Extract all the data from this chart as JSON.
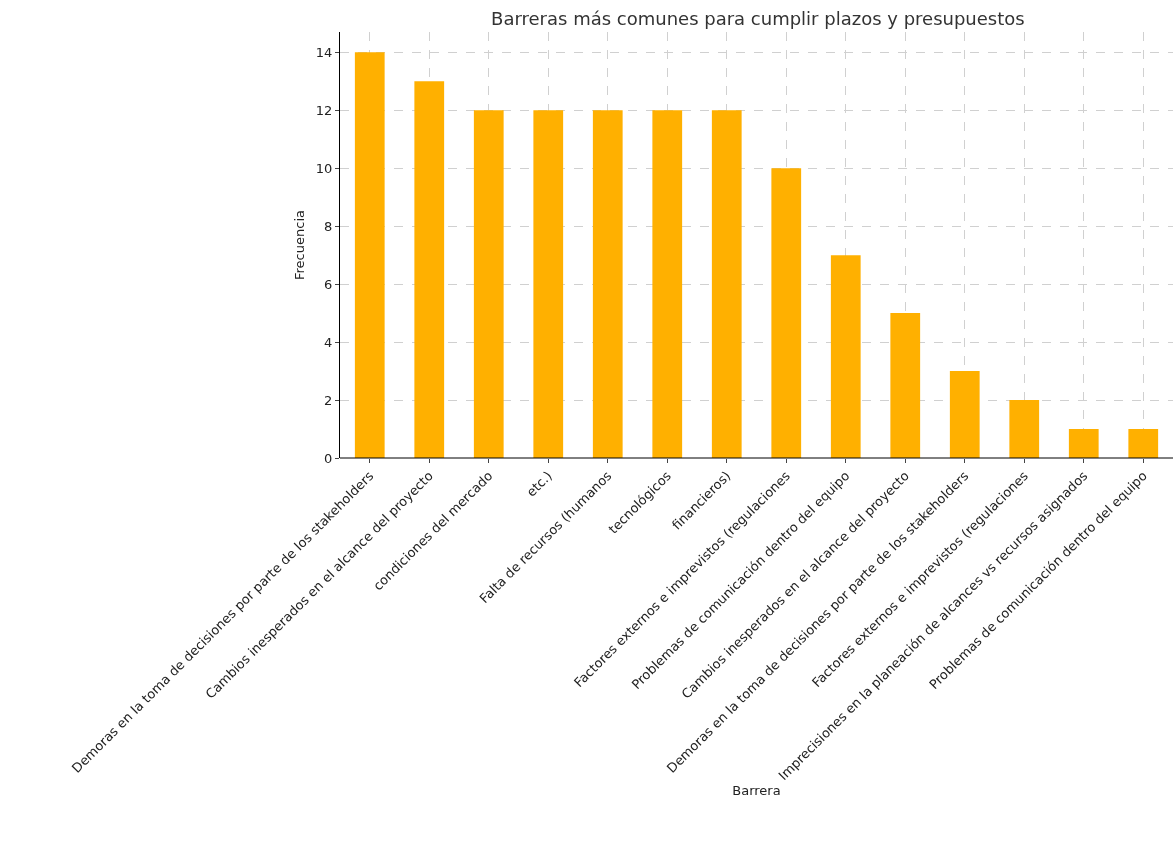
{
  "chart_data": {
    "type": "bar",
    "title": "Barreras más comunes para cumplir plazos y presupuestos",
    "xlabel": "Barrera",
    "ylabel": "Frecuencia",
    "categories": [
      "Demoras en la toma de decisiones por parte de los stakeholders",
      "Cambios inesperados en el alcance del proyecto",
      "condiciones del mercado",
      "etc.)",
      "Falta de recursos (humanos",
      "tecnológicos",
      "financieros)",
      "Factores externos e imprevistos (regulaciones",
      "Problemas de comunicación dentro del equipo",
      "Cambios inesperados en el alcance del proyecto",
      "Demoras en la toma de decisiones por parte de los stakeholders",
      "Factores externos e imprevistos (regulaciones",
      "Imprecisiones en la planeación de alcances vs recursos asignados",
      "Problemas de comunicación dentro del equipo"
    ],
    "values": [
      14,
      13,
      12,
      12,
      12,
      12,
      12,
      10,
      7,
      5,
      3,
      2,
      1,
      1
    ],
    "color": "#ffb000",
    "ylim": [
      0,
      14.7
    ],
    "yticks": [
      0,
      2,
      4,
      6,
      8,
      10,
      12,
      14
    ],
    "grid": true
  }
}
